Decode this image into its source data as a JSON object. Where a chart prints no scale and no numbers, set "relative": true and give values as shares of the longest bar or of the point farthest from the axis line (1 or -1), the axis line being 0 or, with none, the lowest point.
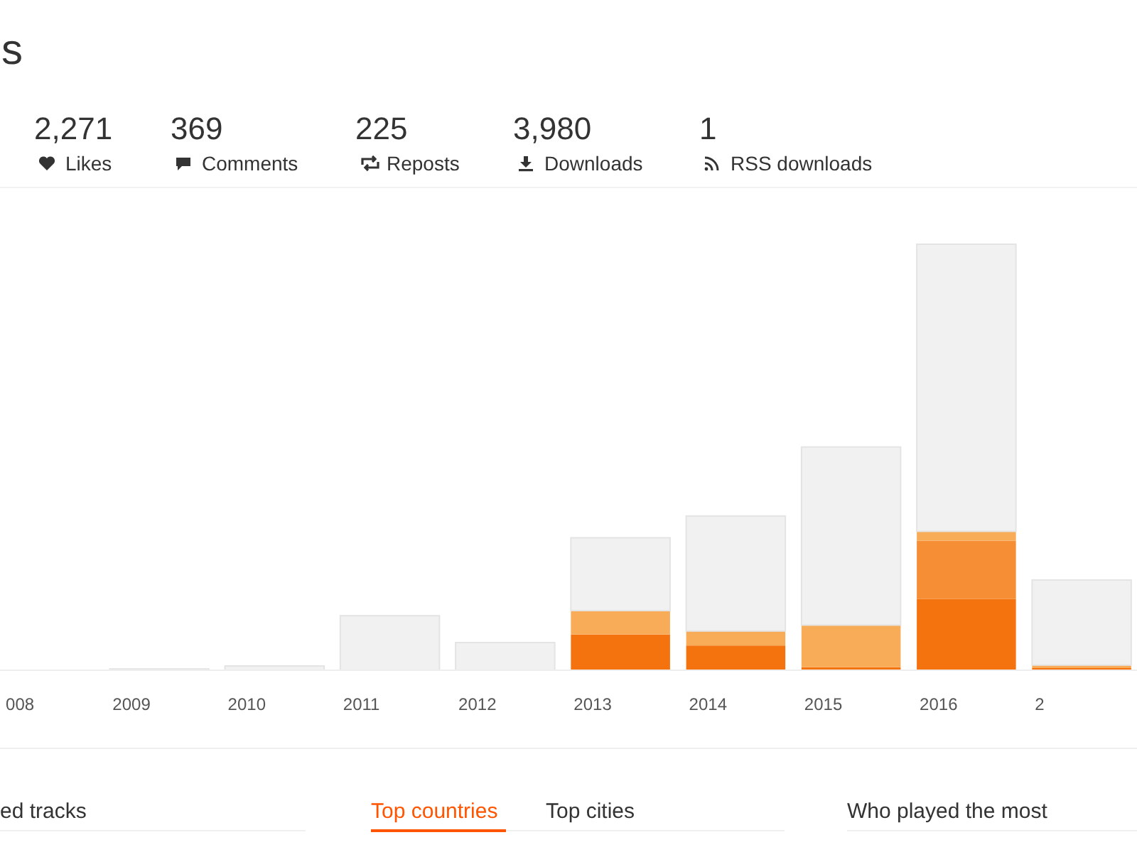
{
  "chart_data": {
    "type": "bar",
    "title": "s",
    "relative": true,
    "stacked": true,
    "categories": [
      "008",
      "2009",
      "2010",
      "2011",
      "2012",
      "2013",
      "2014",
      "2015",
      "2016",
      "2"
    ],
    "series": [
      {
        "color": "#f5730f",
        "values": [
          0,
          0,
          0,
          0,
          0,
          0.084,
          0.058,
          0.007,
          0.167,
          0.005
        ]
      },
      {
        "color": "#f68e35",
        "values": [
          0,
          0,
          0,
          0,
          0,
          0,
          0,
          0,
          0.137,
          0
        ]
      },
      {
        "color": "#f8ac58",
        "values": [
          0,
          0,
          0,
          0,
          0,
          0.056,
          0.034,
          0.099,
          0.022,
          0.007
        ]
      },
      {
        "color": "#f1f1f1",
        "values": [
          0,
          0.003,
          0.01,
          0.128,
          0.065,
          0.171,
          0.27,
          0.418,
          0.674,
          0.2
        ]
      }
    ],
    "annotations": [
      "2,271",
      "Likes",
      "369",
      "Comments",
      "225",
      "Reposts",
      "3,980",
      "Downloads",
      "1",
      "RSS downloads",
      "ed tracks",
      "Top countries",
      "Top cities",
      "Who played the most"
    ]
  }
}
